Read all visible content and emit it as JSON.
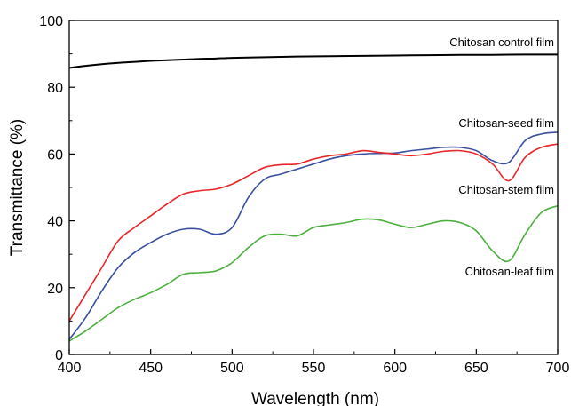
{
  "chart_data": {
    "type": "line",
    "xlabel": "Wavelength (nm)",
    "ylabel": "Transmittance (%)",
    "xlim": [
      400,
      700
    ],
    "ylim": [
      0,
      100
    ],
    "xticks": [
      400,
      450,
      500,
      550,
      600,
      650,
      700
    ],
    "yticks": [
      0,
      20,
      40,
      60,
      80,
      100
    ],
    "grid": false,
    "legend": "inline labels near each curve",
    "series": [
      {
        "name": "Chitosan control film",
        "color": "#000000",
        "x": [
          400,
          410,
          420,
          430,
          440,
          450,
          460,
          470,
          480,
          490,
          500,
          520,
          540,
          560,
          580,
          600,
          620,
          640,
          660,
          680,
          700
        ],
        "values": [
          85.8,
          86.4,
          86.9,
          87.3,
          87.6,
          87.9,
          88.1,
          88.3,
          88.5,
          88.6,
          88.8,
          89.0,
          89.2,
          89.3,
          89.4,
          89.5,
          89.6,
          89.7,
          89.7,
          89.8,
          89.8
        ]
      },
      {
        "name": "Chitosan-seed film",
        "color": "#3a4fa0",
        "x": [
          400,
          410,
          420,
          430,
          440,
          450,
          460,
          470,
          480,
          490,
          500,
          510,
          520,
          530,
          540,
          550,
          560,
          570,
          580,
          590,
          600,
          610,
          620,
          630,
          640,
          650,
          660,
          670,
          680,
          690,
          700
        ],
        "values": [
          4.5,
          11,
          19,
          26,
          30.5,
          33.5,
          36,
          37.5,
          37.5,
          36,
          38,
          47,
          52.5,
          54,
          55.5,
          57,
          58.5,
          59.5,
          60,
          60.2,
          60.3,
          61,
          61.5,
          62,
          62,
          61,
          58,
          57.5,
          64,
          66,
          66.5
        ]
      },
      {
        "name": "Chitosan-stem film",
        "color": "#e8262a",
        "x": [
          400,
          410,
          420,
          430,
          440,
          450,
          460,
          470,
          480,
          490,
          500,
          510,
          520,
          530,
          540,
          550,
          560,
          570,
          580,
          590,
          600,
          610,
          620,
          630,
          640,
          650,
          660,
          670,
          680,
          690,
          700
        ],
        "values": [
          10,
          18,
          26,
          34,
          38,
          41.5,
          45,
          48,
          49,
          49.5,
          51,
          53.5,
          56,
          56.8,
          57,
          58.5,
          59.5,
          60,
          61,
          60.5,
          60,
          59.5,
          60,
          60.8,
          61,
          60,
          57,
          52,
          59,
          62,
          63
        ]
      },
      {
        "name": "Chitosan-leaf film",
        "color": "#4caf3e",
        "x": [
          400,
          410,
          420,
          430,
          440,
          450,
          460,
          470,
          480,
          490,
          500,
          510,
          520,
          530,
          540,
          550,
          560,
          570,
          580,
          590,
          600,
          610,
          620,
          630,
          640,
          650,
          660,
          670,
          680,
          690,
          700
        ],
        "values": [
          4,
          7,
          10.5,
          14,
          16.5,
          18.5,
          21,
          24,
          24.5,
          25,
          27.5,
          32,
          35.5,
          36,
          35.5,
          38,
          38.8,
          39.5,
          40.5,
          40.3,
          39,
          38,
          39,
          40,
          39.5,
          37,
          31,
          28,
          36,
          42.5,
          44.5
        ]
      }
    ]
  }
}
